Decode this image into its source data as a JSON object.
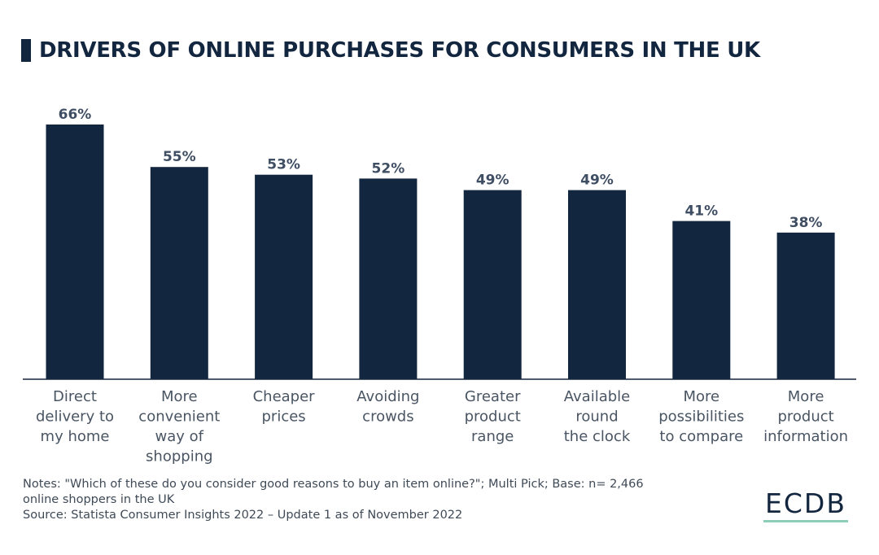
{
  "title": "DRIVERS OF ONLINE PURCHASES FOR CONSUMERS IN THE UK",
  "notes": {
    "line1": "Notes: \"Which of these do you consider good reasons to buy an item online?\"; Multi Pick; Base: n= 2,466",
    "line2": "online shoppers in the UK",
    "line3": "Source: Statista Consumer Insights 2022 – Update 1 as of November 2022"
  },
  "logo": {
    "text": "ECDB",
    "underline_color": "#8ecdb9"
  },
  "colors": {
    "bar": "#13263f",
    "value_label": "#3f4e63",
    "category_label": "#4a5563",
    "axis": "#13263f"
  },
  "chart_data": {
    "type": "bar",
    "title": "DRIVERS OF ONLINE PURCHASES FOR CONSUMERS IN THE UK",
    "xlabel": "",
    "ylabel": "",
    "ylim": [
      0,
      66
    ],
    "grid": false,
    "categories": [
      "Direct delivery to my home",
      "More convenient way of shopping",
      "Cheaper prices",
      "Avoiding crowds",
      "Greater product range",
      "Available round the clock",
      "More possibilities to compare",
      "More product information"
    ],
    "category_lines": [
      [
        "Direct",
        "delivery to",
        "my home"
      ],
      [
        "More",
        "convenient",
        "way of",
        "shopping"
      ],
      [
        "Cheaper",
        "prices"
      ],
      [
        "Avoiding",
        "crowds"
      ],
      [
        "Greater",
        "product",
        "range"
      ],
      [
        "Available",
        "round",
        "the clock"
      ],
      [
        "More",
        "possibilities",
        "to compare"
      ],
      [
        "More",
        "product",
        "information"
      ]
    ],
    "values": [
      66,
      55,
      53,
      52,
      49,
      49,
      41,
      38
    ],
    "value_labels": [
      "66%",
      "55%",
      "53%",
      "52%",
      "49%",
      "49%",
      "41%",
      "38%"
    ],
    "unit": "%"
  }
}
